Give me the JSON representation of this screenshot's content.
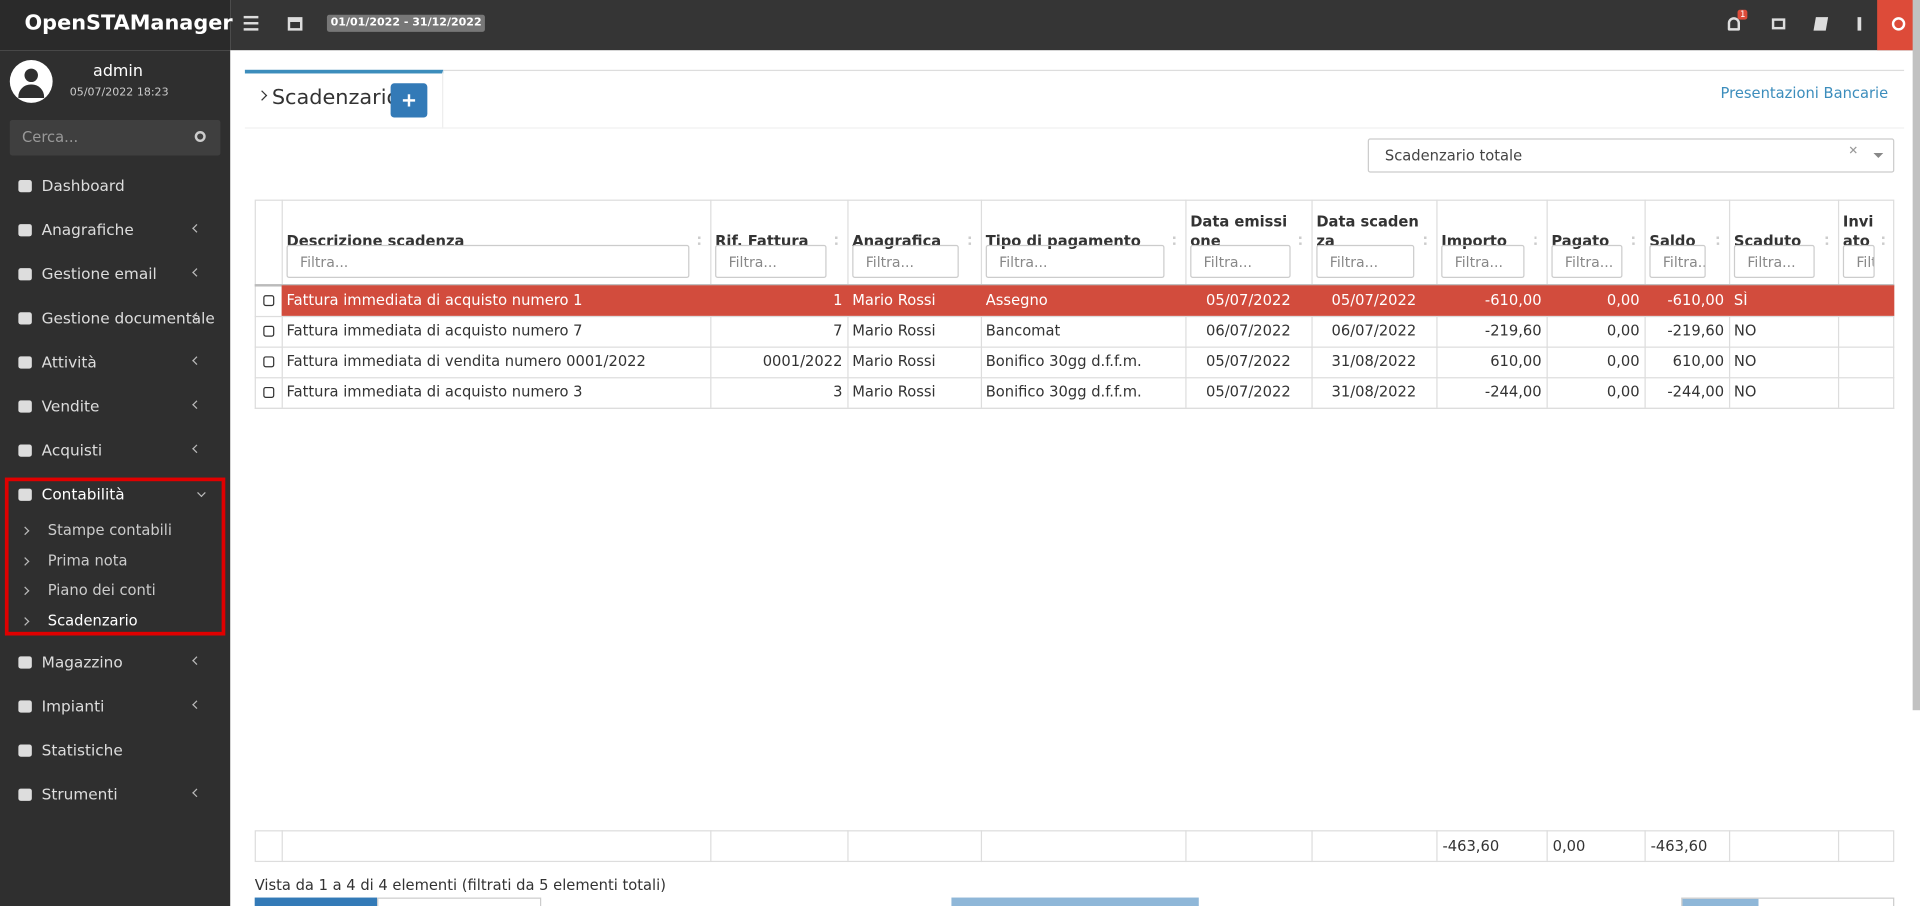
{
  "brand": "OpenSTAManager",
  "topbar": {
    "date_range": "01/01/2022 - 31/12/2022",
    "notifications": "1"
  },
  "user": {
    "name": "admin",
    "datetime": "05/07/2022 18:23"
  },
  "search": {
    "placeholder": "Cerca..."
  },
  "menu": [
    {
      "label": "Dashboard",
      "submenu": false
    },
    {
      "label": "Anagrafiche",
      "submenu": true
    },
    {
      "label": "Gestione email",
      "submenu": true
    },
    {
      "label": "Gestione documentale",
      "submenu": true
    },
    {
      "label": "Attività",
      "submenu": true
    },
    {
      "label": "Vendite",
      "submenu": true
    },
    {
      "label": "Acquisti",
      "submenu": true
    },
    {
      "label": "Contabilità",
      "submenu": true,
      "expanded": true,
      "children": [
        "Stampe contabili",
        "Prima nota",
        "Piano dei conti",
        "Scadenzario"
      ],
      "active_child": 3
    },
    {
      "label": "Magazzino",
      "submenu": true
    },
    {
      "label": "Impianti",
      "submenu": true
    },
    {
      "label": "Statistiche",
      "submenu": false
    },
    {
      "label": "Strumenti",
      "submenu": true
    }
  ],
  "page": {
    "title": "Scadenzario",
    "link": "Presentazioni Bancarie",
    "filter_select": "Scadenzario totale"
  },
  "table": {
    "headers": [
      "Descrizione scadenza",
      "Rif. Fattura",
      "Anagrafica",
      "Tipo di pagamento",
      "Data emissione",
      "Data scadenza",
      "Importo",
      "Pagato",
      "Saldo",
      "Scaduto",
      "Inviato"
    ],
    "filter_placeholder": "Filtra...",
    "rows": [
      [
        "Fattura immediata di acquisto numero 1",
        "1",
        "Mario Rossi",
        "Assegno",
        "05/07/2022",
        "05/07/2022",
        "-610,00",
        "0,00",
        "-610,00",
        "SÌ",
        ""
      ],
      [
        "Fattura immediata di acquisto numero 7",
        "7",
        "Mario Rossi",
        "Bancomat",
        "06/07/2022",
        "06/07/2022",
        "-219,60",
        "0,00",
        "-219,60",
        "NO",
        ""
      ],
      [
        "Fattura immediata di vendita numero 0001/2022",
        "0001/2022",
        "Mario Rossi",
        "Bonifico 30gg d.f.f.m.",
        "05/07/2022",
        "31/08/2022",
        "610,00",
        "0,00",
        "610,00",
        "NO",
        ""
      ],
      [
        "Fattura immediata di acquisto numero 3",
        "3",
        "Mario Rossi",
        "Bonifico 30gg d.f.f.m.",
        "05/07/2022",
        "31/08/2022",
        "-244,00",
        "0,00",
        "-244,00",
        "NO",
        ""
      ]
    ],
    "highlighted_rows": [
      0
    ],
    "totals": [
      "",
      "",
      "",
      "",
      "",
      "",
      "-463,60",
      "0,00",
      "-463,60",
      "",
      ""
    ],
    "info": "Vista da 1 a 4 di 4 elementi (filtrati da 5 elementi totali)"
  }
}
